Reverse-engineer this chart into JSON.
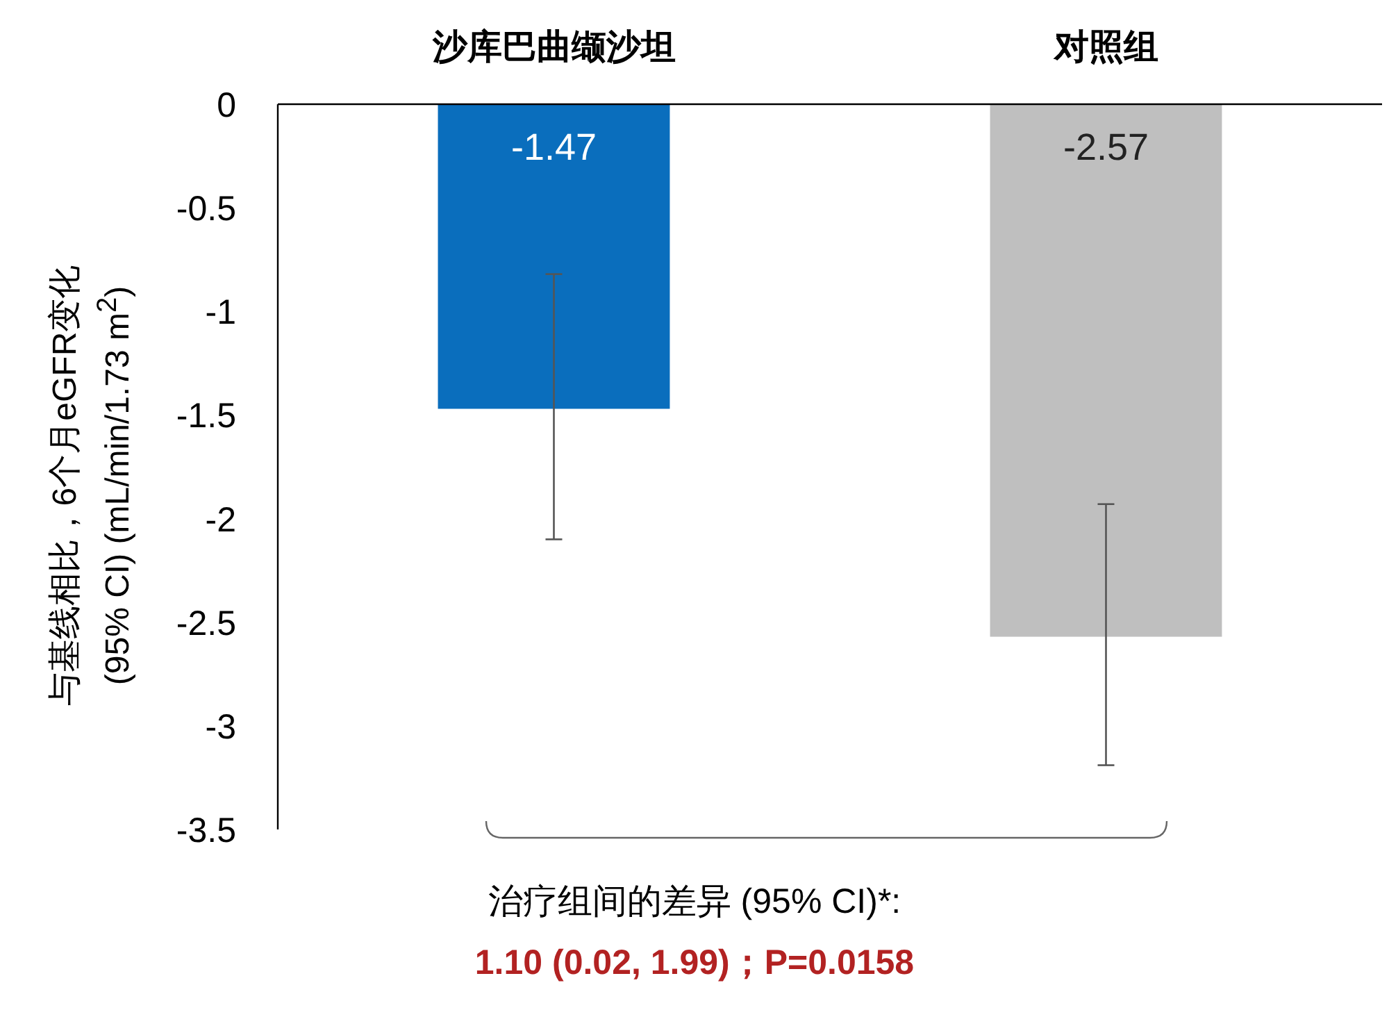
{
  "chart_data": {
    "type": "bar",
    "categories": [
      "沙库巴曲缬沙坦",
      "对照组"
    ],
    "values": [
      -1.47,
      -2.57
    ],
    "colors": [
      "#0a6ebd",
      "#bfbfbf"
    ],
    "errors": [
      [
        -2.1,
        -0.82
      ],
      [
        -3.19,
        -1.93
      ]
    ],
    "ylabel": "与基线相比，6个月eGFR变化 (95% CI) (mL/min/1.73 m$^{2}$)",
    "ylim": [
      -3.5,
      0
    ],
    "yticks": [
      0,
      -0.5,
      -1,
      -1.5,
      -2,
      -2.5,
      -3,
      -3.5
    ],
    "data_labels": true,
    "grid": false,
    "annotations": [
      "治疗组间的差异 (95% CI)*:",
      "1.10 (0.02, 1.99)；P=0.0158"
    ]
  }
}
